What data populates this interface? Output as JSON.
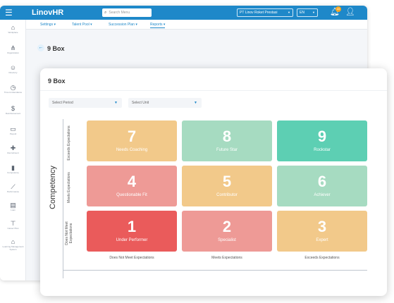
{
  "app": {
    "brand": "LinovHR",
    "search_placeholder": "Search Menu",
    "company": "PT Linov Roket Prestasi",
    "language": "EN",
    "notification_count": "10"
  },
  "sidebar": {
    "items": [
      {
        "label": "Workplace"
      },
      {
        "label": "Organization"
      },
      {
        "label": "Directory"
      },
      {
        "label": "Time & Attendance"
      },
      {
        "label": "Reimbursement"
      },
      {
        "label": "Payroll"
      },
      {
        "label": "Recruitment"
      },
      {
        "label": "Competency"
      },
      {
        "label": "Performance"
      },
      {
        "label": "Loan"
      },
      {
        "label": "Career Plan"
      },
      {
        "label": "Learning Management System"
      }
    ]
  },
  "tabs": [
    {
      "label": "Settings"
    },
    {
      "label": "Talent Pool"
    },
    {
      "label": "Succession Plan"
    },
    {
      "label": "Reports"
    }
  ],
  "page_title": "9 Box",
  "card": {
    "title": "9 Box",
    "select_period": "Select Period",
    "select_unit": "Select Unit",
    "y_axis_label": "Competency",
    "row_labels": [
      "Exceeds Expectations",
      "Meets Expectations",
      "Does Not Meet Expectations"
    ],
    "col_labels": [
      "Does Not Meet Expectations",
      "Meets Expectations",
      "Exceeds Expectations"
    ],
    "boxes": [
      {
        "number": "7",
        "label": "Needs Coaching",
        "color": "#f2c98a"
      },
      {
        "number": "8",
        "label": "Future Star",
        "color": "#a6dbc1"
      },
      {
        "number": "9",
        "label": "Rockstar",
        "color": "#5dcfb3"
      },
      {
        "number": "4",
        "label": "Questionable Fit",
        "color": "#ee9a96"
      },
      {
        "number": "5",
        "label": "Contributor",
        "color": "#f2c98a"
      },
      {
        "number": "6",
        "label": "Achiever",
        "color": "#a6dbc1"
      },
      {
        "number": "1",
        "label": "Under Performer",
        "color": "#ea5b5b"
      },
      {
        "number": "2",
        "label": "Specialist",
        "color": "#ee9a96"
      },
      {
        "number": "3",
        "label": "Expert",
        "color": "#f2c98a"
      }
    ]
  }
}
